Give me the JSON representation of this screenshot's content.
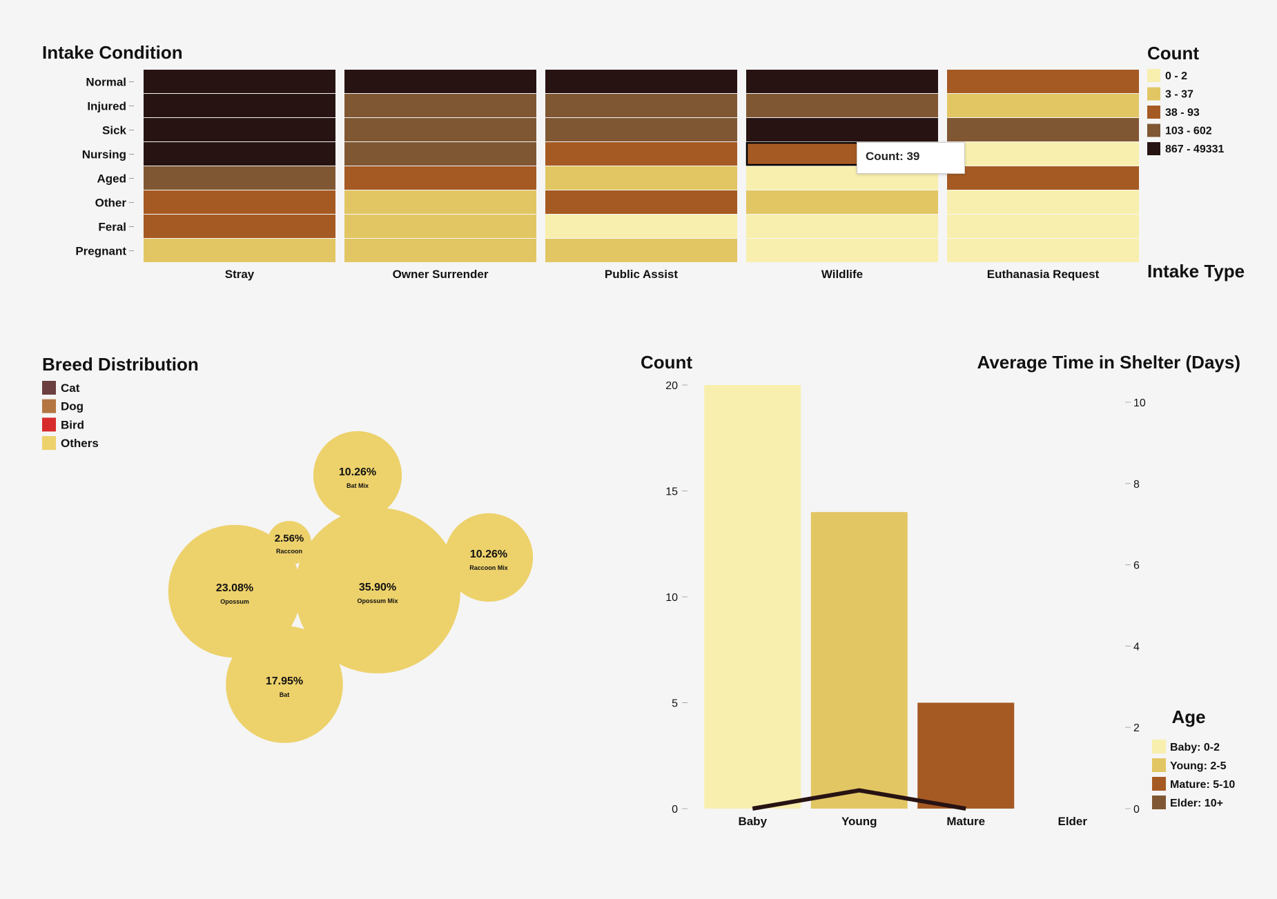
{
  "colors": {
    "background": "#f5f5f5",
    "count_scale": [
      "#f8efae",
      "#e2c663",
      "#a65a23",
      "#805733",
      "#281313"
    ],
    "breed": {
      "Cat": "#6b3f3f",
      "Dog": "#b47642",
      "Bird": "#d72b2b",
      "Others": "#edd16b"
    },
    "age": {
      "Baby": "#f8efae",
      "Young": "#e2c663",
      "Mature": "#a65a23",
      "Elder": "#805733"
    },
    "line": "#281313"
  },
  "heatmap": {
    "title": "Intake Condition",
    "x_title": "Intake Type",
    "legend_title": "Count",
    "legend_items": [
      "0 - 2",
      "3 - 37",
      "38 - 93",
      "103 - 602",
      "867 - 49331"
    ],
    "tooltip": {
      "text": "Count: 39",
      "row": "Nursing",
      "col": "Wildlife"
    }
  },
  "bubble": {
    "title": "Breed Distribution",
    "legend_items": [
      "Cat",
      "Dog",
      "Bird",
      "Others"
    ]
  },
  "bar": {
    "left_axis_title": "Count",
    "right_axis_title": "Average Time in Shelter (Days)",
    "legend_title": "Age",
    "legend_items": [
      "Baby: 0-2",
      "Young: 2-5",
      "Mature: 5-10",
      "Elder: 10+"
    ]
  },
  "chart_data": [
    {
      "type": "heatmap",
      "title": "Intake Condition",
      "xlabel": "Intake Type",
      "x": [
        "Stray",
        "Owner Surrender",
        "Public Assist",
        "Wildlife",
        "Euthanasia Request"
      ],
      "y": [
        "Normal",
        "Injured",
        "Sick",
        "Nursing",
        "Aged",
        "Other",
        "Feral",
        "Pregnant"
      ],
      "legend": "Count",
      "bins": [
        "0 - 2",
        "3 - 37",
        "38 - 93",
        "103 - 602",
        "867 - 49331"
      ],
      "bin_index": [
        [
          4,
          4,
          4,
          4,
          2
        ],
        [
          4,
          3,
          3,
          3,
          1
        ],
        [
          4,
          3,
          3,
          4,
          3
        ],
        [
          4,
          3,
          2,
          2,
          0
        ],
        [
          3,
          2,
          1,
          0,
          2
        ],
        [
          2,
          1,
          2,
          1,
          0
        ],
        [
          2,
          1,
          0,
          0,
          0
        ],
        [
          1,
          1,
          1,
          0,
          0
        ]
      ]
    },
    {
      "type": "bubble",
      "title": "Breed Distribution",
      "legend": [
        "Cat",
        "Dog",
        "Bird",
        "Others"
      ],
      "items": [
        {
          "label": "Opossum Mix",
          "value": 35.9,
          "pct": "35.90%",
          "category": "Others"
        },
        {
          "label": "Opossum",
          "value": 23.08,
          "pct": "23.08%",
          "category": "Others"
        },
        {
          "label": "Bat",
          "value": 17.95,
          "pct": "17.95%",
          "category": "Others"
        },
        {
          "label": "Bat Mix",
          "value": 10.26,
          "pct": "10.26%",
          "category": "Others"
        },
        {
          "label": "Raccoon Mix",
          "value": 10.26,
          "pct": "10.26%",
          "category": "Others"
        },
        {
          "label": "Raccoon",
          "value": 2.56,
          "pct": "2.56%",
          "category": "Others"
        }
      ]
    },
    {
      "type": "bar",
      "categories": [
        "Baby",
        "Young",
        "Mature",
        "Elder"
      ],
      "series": [
        {
          "name": "Count",
          "values": [
            20,
            14,
            5,
            0
          ]
        },
        {
          "name": "Average Time in Shelter (Days)",
          "values": [
            0,
            0.45,
            0,
            null
          ]
        }
      ],
      "ylabel": "Count",
      "y2label": "Average Time in Shelter (Days)",
      "ylim": [
        0,
        20
      ],
      "y2lim": [
        0,
        10
      ],
      "yticks": [
        0,
        5,
        10,
        15,
        20
      ],
      "y2ticks": [
        0,
        2,
        4,
        6,
        8,
        10
      ]
    }
  ]
}
